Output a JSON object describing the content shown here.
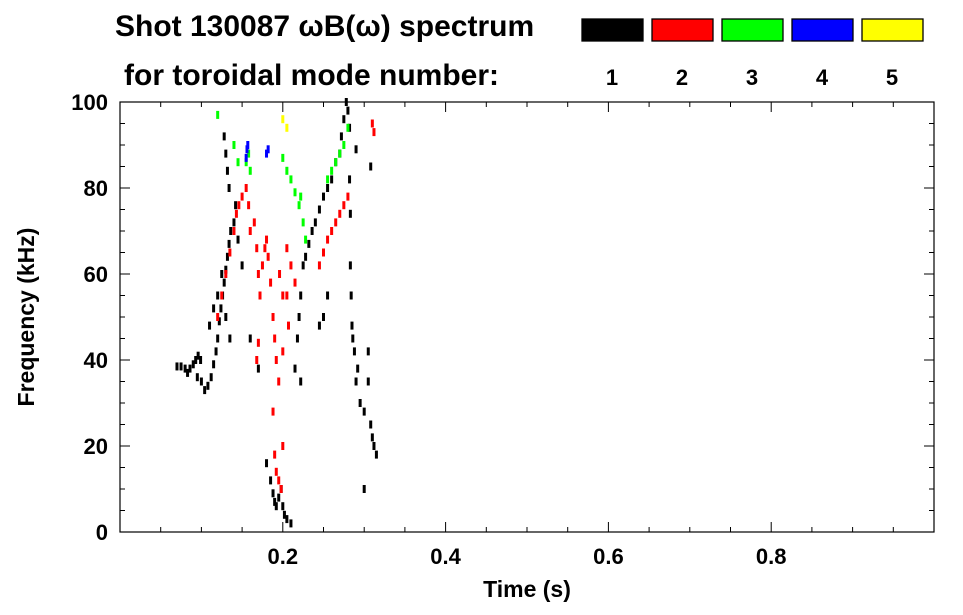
{
  "chart_data": {
    "type": "scatter",
    "title_line1": "Shot 130087 ωB(ω) spectrum",
    "title_line2": "for toroidal mode number:",
    "xlabel": "Time (s)",
    "ylabel": "Frequency (kHz)",
    "xlim": [
      0,
      1.0
    ],
    "ylim": [
      0,
      100
    ],
    "x_ticks": [
      {
        "value": 0.2,
        "label": "0.2"
      },
      {
        "value": 0.4,
        "label": "0.4"
      },
      {
        "value": 0.6,
        "label": "0.6"
      },
      {
        "value": 0.8,
        "label": "0.8"
      }
    ],
    "y_ticks": [
      {
        "value": 0,
        "label": "0"
      },
      {
        "value": 20,
        "label": "20"
      },
      {
        "value": 40,
        "label": "40"
      },
      {
        "value": 60,
        "label": "60"
      },
      {
        "value": 80,
        "label": "80"
      },
      {
        "value": 100,
        "label": "100"
      }
    ],
    "legend": [
      {
        "mode": "1",
        "color": "#000000"
      },
      {
        "mode": "2",
        "color": "#ff0000"
      },
      {
        "mode": "3",
        "color": "#00ff00"
      },
      {
        "mode": "4",
        "color": "#0000ff"
      },
      {
        "mode": "5",
        "color": "#ffff00"
      }
    ],
    "series": [
      {
        "mode": "1",
        "color": "#000000",
        "points": [
          [
            0.07,
            38.5
          ],
          [
            0.075,
            38.5
          ],
          [
            0.08,
            38
          ],
          [
            0.083,
            37
          ],
          [
            0.086,
            38
          ],
          [
            0.09,
            39
          ],
          [
            0.093,
            40
          ],
          [
            0.096,
            41
          ],
          [
            0.099,
            40
          ],
          [
            0.095,
            36
          ],
          [
            0.1,
            35
          ],
          [
            0.104,
            33
          ],
          [
            0.108,
            34
          ],
          [
            0.112,
            36
          ],
          [
            0.115,
            39
          ],
          [
            0.118,
            42
          ],
          [
            0.12,
            45
          ],
          [
            0.122,
            49
          ],
          [
            0.124,
            52
          ],
          [
            0.126,
            55
          ],
          [
            0.128,
            58
          ],
          [
            0.13,
            61
          ],
          [
            0.132,
            64
          ],
          [
            0.134,
            67
          ],
          [
            0.136,
            70
          ],
          [
            0.14,
            72
          ],
          [
            0.11,
            48
          ],
          [
            0.115,
            52
          ],
          [
            0.12,
            55
          ],
          [
            0.125,
            60
          ],
          [
            0.13,
            50
          ],
          [
            0.135,
            45
          ],
          [
            0.128,
            92
          ],
          [
            0.13,
            88
          ],
          [
            0.132,
            84
          ],
          [
            0.134,
            80
          ],
          [
            0.142,
            76
          ],
          [
            0.145,
            68
          ],
          [
            0.15,
            62
          ],
          [
            0.16,
            45
          ],
          [
            0.17,
            38
          ],
          [
            0.18,
            16
          ],
          [
            0.185,
            12
          ],
          [
            0.188,
            9
          ],
          [
            0.19,
            7
          ],
          [
            0.192,
            6
          ],
          [
            0.195,
            8
          ],
          [
            0.198,
            10
          ],
          [
            0.2,
            6
          ],
          [
            0.202,
            4
          ],
          [
            0.205,
            3
          ],
          [
            0.21,
            2
          ],
          [
            0.215,
            38
          ],
          [
            0.218,
            45
          ],
          [
            0.22,
            50
          ],
          [
            0.222,
            55
          ],
          [
            0.222,
            35
          ],
          [
            0.225,
            62
          ],
          [
            0.228,
            64
          ],
          [
            0.232,
            67
          ],
          [
            0.236,
            70
          ],
          [
            0.24,
            72
          ],
          [
            0.245,
            75
          ],
          [
            0.25,
            78
          ],
          [
            0.255,
            80
          ],
          [
            0.26,
            82
          ],
          [
            0.265,
            86
          ],
          [
            0.27,
            88
          ],
          [
            0.272,
            92
          ],
          [
            0.275,
            96
          ],
          [
            0.278,
            100
          ],
          [
            0.28,
            98
          ],
          [
            0.282,
            94
          ],
          [
            0.282,
            82
          ],
          [
            0.283,
            74
          ],
          [
            0.283,
            62
          ],
          [
            0.284,
            55
          ],
          [
            0.285,
            48
          ],
          [
            0.286,
            45
          ],
          [
            0.288,
            42
          ],
          [
            0.29,
            35
          ],
          [
            0.292,
            38
          ],
          [
            0.295,
            30
          ],
          [
            0.3,
            28
          ],
          [
            0.305,
            35
          ],
          [
            0.308,
            25
          ],
          [
            0.31,
            22
          ],
          [
            0.312,
            20
          ],
          [
            0.315,
            18
          ],
          [
            0.308,
            85
          ],
          [
            0.305,
            42
          ],
          [
            0.29,
            89
          ],
          [
            0.255,
            55
          ],
          [
            0.25,
            50
          ],
          [
            0.245,
            48
          ],
          [
            0.3,
            10
          ]
        ]
      },
      {
        "mode": "2",
        "color": "#ff0000",
        "points": [
          [
            0.12,
            50
          ],
          [
            0.125,
            55
          ],
          [
            0.13,
            60
          ],
          [
            0.135,
            65
          ],
          [
            0.14,
            70
          ],
          [
            0.143,
            74
          ],
          [
            0.146,
            76
          ],
          [
            0.15,
            78
          ],
          [
            0.155,
            80
          ],
          [
            0.158,
            76
          ],
          [
            0.16,
            70
          ],
          [
            0.165,
            72
          ],
          [
            0.168,
            66
          ],
          [
            0.17,
            60
          ],
          [
            0.172,
            55
          ],
          [
            0.175,
            62
          ],
          [
            0.178,
            66
          ],
          [
            0.18,
            68
          ],
          [
            0.182,
            64
          ],
          [
            0.185,
            58
          ],
          [
            0.188,
            50
          ],
          [
            0.19,
            45
          ],
          [
            0.192,
            40
          ],
          [
            0.195,
            35
          ],
          [
            0.188,
            28
          ],
          [
            0.19,
            18
          ],
          [
            0.192,
            14
          ],
          [
            0.195,
            12
          ],
          [
            0.198,
            10
          ],
          [
            0.2,
            20
          ],
          [
            0.205,
            66
          ],
          [
            0.21,
            62
          ],
          [
            0.215,
            58
          ],
          [
            0.2,
            55
          ],
          [
            0.196,
            60
          ],
          [
            0.245,
            62
          ],
          [
            0.25,
            65
          ],
          [
            0.255,
            68
          ],
          [
            0.26,
            70
          ],
          [
            0.265,
            72
          ],
          [
            0.27,
            74
          ],
          [
            0.275,
            76
          ],
          [
            0.28,
            78
          ],
          [
            0.31,
            95
          ],
          [
            0.312,
            93
          ],
          [
            0.2,
            42
          ],
          [
            0.205,
            55
          ],
          [
            0.207,
            48
          ],
          [
            0.168,
            40
          ],
          [
            0.17,
            44
          ]
        ]
      },
      {
        "mode": "3",
        "color": "#00ff00",
        "points": [
          [
            0.12,
            97
          ],
          [
            0.14,
            90
          ],
          [
            0.145,
            86
          ],
          [
            0.16,
            84
          ],
          [
            0.2,
            87
          ],
          [
            0.205,
            84
          ],
          [
            0.21,
            82
          ],
          [
            0.215,
            79
          ],
          [
            0.22,
            76
          ],
          [
            0.225,
            72
          ],
          [
            0.228,
            68
          ],
          [
            0.255,
            82
          ],
          [
            0.26,
            84
          ],
          [
            0.265,
            86
          ],
          [
            0.27,
            88
          ],
          [
            0.275,
            90
          ],
          [
            0.28,
            94
          ],
          [
            0.222,
            78
          ],
          [
            0.155,
            86
          ],
          [
            0.158,
            88
          ]
        ]
      },
      {
        "mode": "4",
        "color": "#0000ff",
        "points": [
          [
            0.155,
            87
          ],
          [
            0.156,
            89
          ],
          [
            0.157,
            90
          ],
          [
            0.18,
            88
          ],
          [
            0.182,
            89
          ]
        ]
      },
      {
        "mode": "5",
        "color": "#ffff00",
        "points": [
          [
            0.2,
            96
          ],
          [
            0.205,
            94
          ]
        ]
      }
    ]
  }
}
